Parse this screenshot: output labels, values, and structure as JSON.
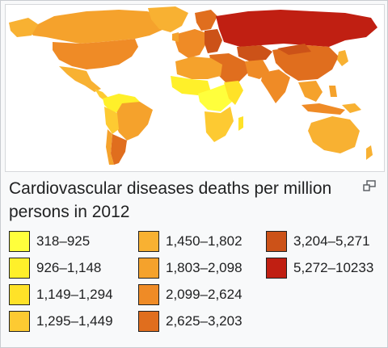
{
  "caption": "Cardiovascular diseases deaths per million persons in 2012",
  "enlarge_icon": "enlarge-icon",
  "legend": [
    {
      "label": "318–925",
      "color": "#ffff3c"
    },
    {
      "label": "926–1,148",
      "color": "#fff02a"
    },
    {
      "label": "1,149–1,294",
      "color": "#ffe228"
    },
    {
      "label": "1,295–1,449",
      "color": "#fdca32"
    },
    {
      "label": "1,450–1,802",
      "color": "#f8b132"
    },
    {
      "label": "1,803–2,098",
      "color": "#f5a22c"
    },
    {
      "label": "2,099–2,624",
      "color": "#ef8b26"
    },
    {
      "label": "2,625–3,203",
      "color": "#e06e1e"
    },
    {
      "label": "3,204–5,271",
      "color": "#cc5218"
    },
    {
      "label": "5,272–10233",
      "color": "#c01f12"
    }
  ]
}
